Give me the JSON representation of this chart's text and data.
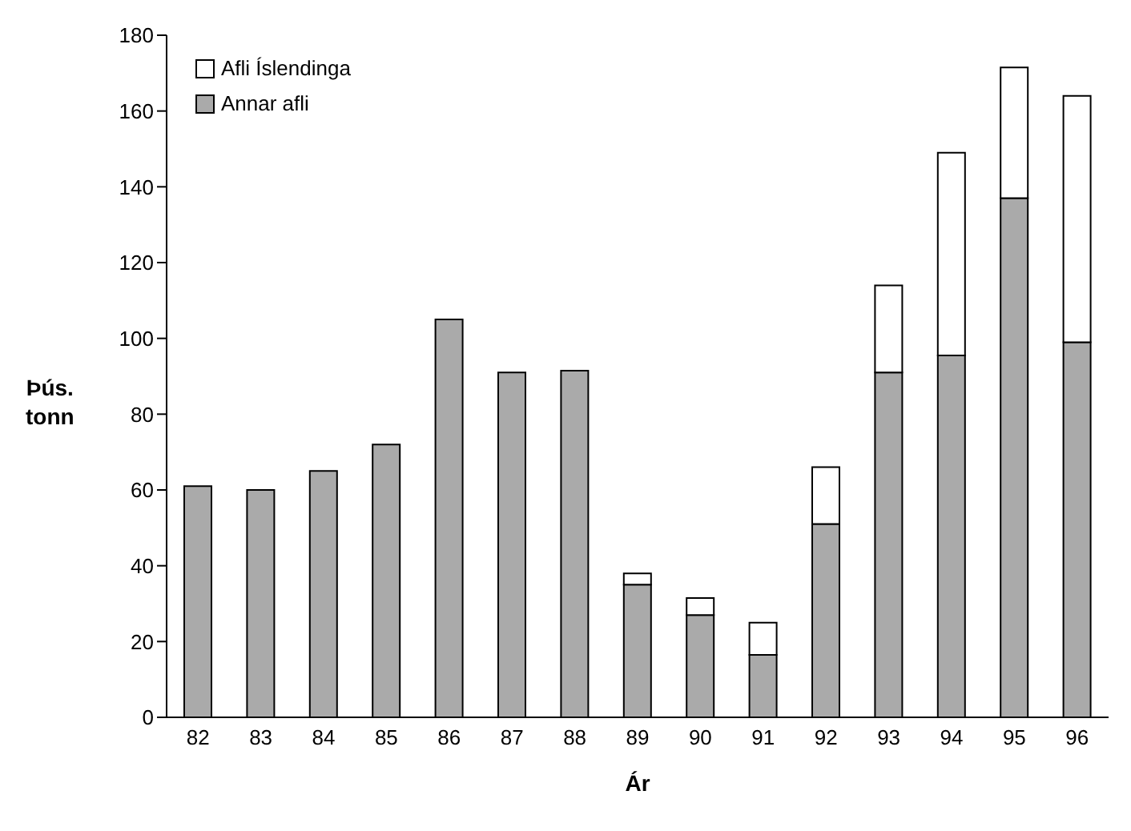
{
  "chart_data": {
    "type": "bar",
    "stacked": true,
    "xlabel": "Ár",
    "ylabel": "Þús.\ntonn",
    "categories": [
      "82",
      "83",
      "84",
      "85",
      "86",
      "87",
      "88",
      "89",
      "90",
      "91",
      "92",
      "93",
      "94",
      "95",
      "96"
    ],
    "series": [
      {
        "name": "Annar afli",
        "color": "#aaaaaa",
        "values": [
          61,
          60,
          65,
          72,
          105,
          91,
          91.5,
          35,
          27,
          16.5,
          51,
          91,
          95.5,
          137,
          99
        ]
      },
      {
        "name": "Afli Íslendinga",
        "color": "#ffffff",
        "values": [
          null,
          null,
          null,
          null,
          null,
          null,
          null,
          3,
          4.5,
          8.5,
          15,
          23,
          53.5,
          34.5,
          65
        ]
      }
    ],
    "ylim": [
      0,
      180
    ],
    "yticks": [
      0,
      20,
      40,
      60,
      80,
      100,
      120,
      140,
      160,
      180
    ],
    "grid": false,
    "legend": "top left"
  }
}
